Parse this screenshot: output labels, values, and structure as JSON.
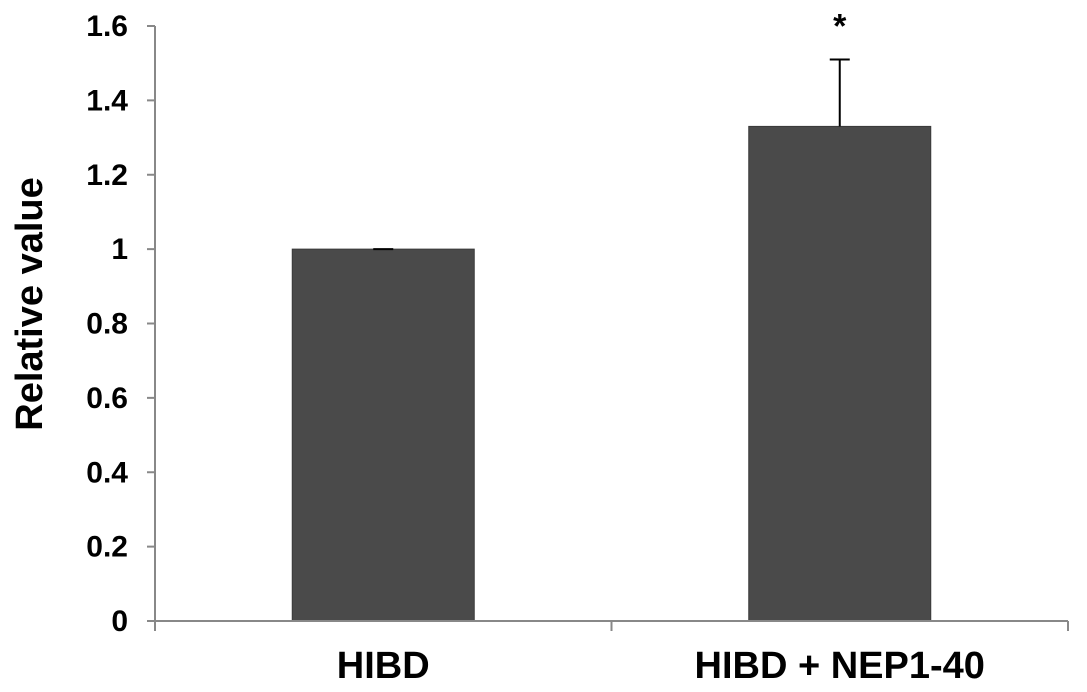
{
  "chart_data": {
    "type": "bar",
    "title": "",
    "xlabel": "",
    "ylabel": "Relative value",
    "categories": [
      "HIBD",
      "HIBD + NEP1-40"
    ],
    "values": [
      1.0,
      1.33
    ],
    "error_bars": [
      0.0,
      0.18
    ],
    "annotations": [
      {
        "category": "HIBD + NEP1-40",
        "text": "*"
      }
    ],
    "ylim": [
      0,
      1.6
    ],
    "yticks": [
      0,
      0.2,
      0.4,
      0.6,
      0.8,
      1.0,
      1.2,
      1.4,
      1.6
    ],
    "ytick_labels": [
      "0",
      "0.2",
      "0.4",
      "0.6",
      "0.8",
      "1",
      "1.2",
      "1.4",
      "1.6"
    ],
    "grid": false,
    "legend": "none",
    "colors": {
      "bar_fill": "#4a4a4a",
      "bar_stroke": "#3a3a3a",
      "axis": "#888888",
      "text": "#000000"
    }
  }
}
